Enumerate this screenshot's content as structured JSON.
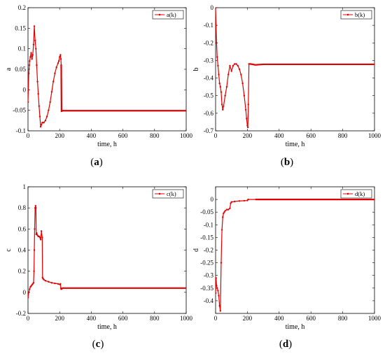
{
  "chart_data": [
    {
      "id": "a",
      "type": "line",
      "caption_prefix": "(",
      "caption_letter": "a",
      "caption_suffix": ")",
      "xlabel": "time, h",
      "ylabel": "a",
      "xlim": [
        0,
        1000
      ],
      "ylim": [
        -0.1,
        0.2
      ],
      "xticks": [
        0,
        200,
        400,
        600,
        800,
        1000
      ],
      "yticks": [
        -0.1,
        -0.05,
        0,
        0.05,
        0.1,
        0.15,
        0.2
      ],
      "ytick_labels": [
        "-0.1",
        "-0.05",
        "0",
        "0.05",
        "0.1",
        "0.15",
        "0.2"
      ],
      "color": "#e00000",
      "legend_position": "top-right",
      "series": [
        {
          "name": "a(k)",
          "x": [
            0,
            2,
            5,
            8,
            10,
            15,
            20,
            25,
            30,
            35,
            40,
            45,
            50,
            55,
            60,
            65,
            70,
            75,
            80,
            85,
            90,
            95,
            100,
            110,
            120,
            130,
            140,
            150,
            160,
            170,
            180,
            190,
            195,
            200,
            205,
            208,
            210,
            212,
            220,
            300,
            400,
            500,
            600,
            700,
            800,
            900,
            1000
          ],
          "y": [
            -0.03,
            0.0,
            0.04,
            0.06,
            0.07,
            0.08,
            0.09,
            0.075,
            0.085,
            0.11,
            0.155,
            0.12,
            0.1,
            0.06,
            0.02,
            -0.01,
            -0.04,
            -0.065,
            -0.09,
            -0.085,
            -0.08,
            -0.08,
            -0.08,
            -0.075,
            -0.065,
            -0.05,
            -0.03,
            -0.005,
            0.02,
            0.04,
            0.055,
            0.065,
            0.07,
            0.08,
            0.085,
            0.075,
            0.06,
            -0.052,
            -0.051,
            -0.051,
            -0.051,
            -0.051,
            -0.051,
            -0.051,
            -0.051,
            -0.051,
            -0.051
          ]
        }
      ]
    },
    {
      "id": "b",
      "type": "line",
      "caption_prefix": "(",
      "caption_letter": "b",
      "caption_suffix": ")",
      "xlabel": "time, h",
      "ylabel": "b",
      "xlim": [
        0,
        1000
      ],
      "ylim": [
        -0.7,
        0
      ],
      "xticks": [
        0,
        200,
        400,
        600,
        800,
        1000
      ],
      "yticks": [
        -0.7,
        -0.6,
        -0.5,
        -0.4,
        -0.3,
        -0.2,
        -0.1,
        0
      ],
      "ytick_labels": [
        "-0.7",
        "-0.6",
        "-0.5",
        "-0.4",
        "-0.3",
        "-0.2",
        "-0.1",
        "0"
      ],
      "color": "#e00000",
      "legend_position": "top-right",
      "series": [
        {
          "name": "b(k)",
          "x": [
            0,
            3,
            6,
            10,
            15,
            20,
            25,
            30,
            35,
            40,
            45,
            50,
            60,
            70,
            80,
            90,
            100,
            110,
            120,
            130,
            140,
            150,
            160,
            170,
            180,
            190,
            195,
            200,
            203,
            206,
            210,
            220,
            250,
            300,
            400,
            500,
            600,
            700,
            800,
            900,
            1000
          ],
          "y": [
            0.0,
            -0.1,
            -0.2,
            -0.28,
            -0.33,
            -0.38,
            -0.43,
            -0.45,
            -0.48,
            -0.55,
            -0.58,
            -0.56,
            -0.5,
            -0.45,
            -0.38,
            -0.33,
            -0.36,
            -0.33,
            -0.32,
            -0.32,
            -0.33,
            -0.35,
            -0.38,
            -0.43,
            -0.5,
            -0.58,
            -0.63,
            -0.67,
            -0.68,
            -0.55,
            -0.32,
            -0.32,
            -0.325,
            -0.322,
            -0.322,
            -0.322,
            -0.322,
            -0.322,
            -0.322,
            -0.322,
            -0.322
          ]
        }
      ]
    },
    {
      "id": "c",
      "type": "line",
      "caption_prefix": "(",
      "caption_letter": "c",
      "caption_suffix": ")",
      "xlabel": "time, h",
      "ylabel": "c",
      "xlim": [
        0,
        1000
      ],
      "ylim": [
        -0.2,
        1
      ],
      "xticks": [
        0,
        200,
        400,
        600,
        800,
        1000
      ],
      "yticks": [
        -0.2,
        0,
        0.2,
        0.4,
        0.6,
        0.8,
        1
      ],
      "ytick_labels": [
        "-0.2",
        "0",
        "0.2",
        "0.4",
        "0.6",
        "0.8",
        "1"
      ],
      "color": "#e00000",
      "legend_position": "top-right",
      "series": [
        {
          "name": "c(k)",
          "x": [
            0,
            5,
            10,
            15,
            20,
            25,
            30,
            35,
            38,
            40,
            42,
            45,
            48,
            50,
            52,
            55,
            60,
            65,
            70,
            75,
            80,
            85,
            90,
            92,
            95,
            100,
            110,
            130,
            150,
            170,
            190,
            200,
            205,
            208,
            210,
            220,
            300,
            400,
            500,
            600,
            700,
            800,
            900,
            1000
          ],
          "y": [
            -0.05,
            0.0,
            0.03,
            0.05,
            0.06,
            0.07,
            0.08,
            0.09,
            0.2,
            0.4,
            0.6,
            0.8,
            0.82,
            0.8,
            0.55,
            0.56,
            0.54,
            0.53,
            0.53,
            0.52,
            0.5,
            0.58,
            0.52,
            0.14,
            0.13,
            0.12,
            0.11,
            0.1,
            0.09,
            0.085,
            0.08,
            0.075,
            0.08,
            0.04,
            0.03,
            0.04,
            0.04,
            0.04,
            0.04,
            0.04,
            0.04,
            0.04,
            0.04,
            0.04
          ]
        }
      ]
    },
    {
      "id": "d",
      "type": "line",
      "caption_prefix": "(",
      "caption_letter": "d",
      "caption_suffix": ")",
      "xlabel": "time, h",
      "ylabel": "d",
      "xlim": [
        0,
        1000
      ],
      "ylim": [
        -0.45,
        0.05
      ],
      "xticks": [
        0,
        200,
        400,
        600,
        800,
        1000
      ],
      "yticks": [
        -0.4,
        -0.35,
        -0.3,
        -0.25,
        -0.2,
        -0.15,
        -0.1,
        -0.05,
        0
      ],
      "ytick_labels": [
        "-0.4",
        "-0.35",
        "-0.3",
        "-0.25",
        "-0.2",
        "-0.15",
        "-0.1",
        "-0.05",
        "0"
      ],
      "color": "#e00000",
      "legend_position": "top-right",
      "series": [
        {
          "name": "d(k)",
          "x": [
            0,
            3,
            6,
            10,
            15,
            20,
            25,
            30,
            35,
            40,
            45,
            50,
            55,
            60,
            70,
            80,
            90,
            95,
            100,
            120,
            150,
            180,
            200,
            205,
            250,
            300,
            400,
            500,
            600,
            700,
            800,
            900,
            1000
          ],
          "y": [
            -0.37,
            -0.31,
            -0.34,
            -0.35,
            -0.36,
            -0.38,
            -0.42,
            -0.44,
            -0.25,
            -0.12,
            -0.07,
            -0.055,
            -0.05,
            -0.045,
            -0.04,
            -0.04,
            -0.035,
            -0.015,
            -0.01,
            -0.008,
            -0.006,
            -0.005,
            -0.004,
            0.0,
            0.0,
            0.0,
            0.0,
            0.0,
            0.0,
            0.0,
            0.0,
            0.0,
            0.0
          ]
        }
      ]
    }
  ]
}
